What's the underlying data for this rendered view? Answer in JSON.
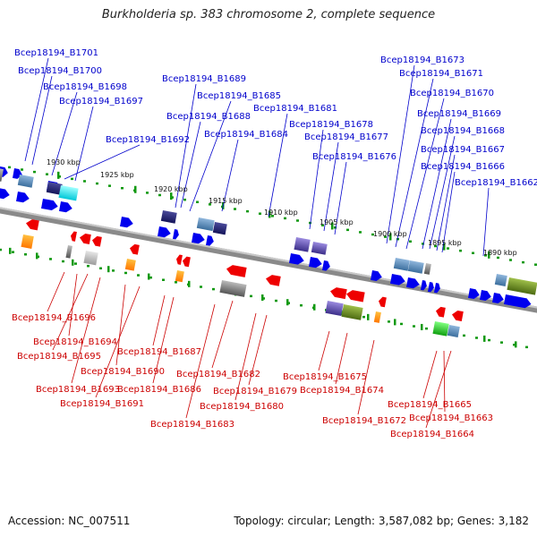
{
  "title": "Burkholderia sp. 383 chromosome 2, complete sequence",
  "footer": {
    "accession": "Accession: NC_007511",
    "summary": "Topology: circular; Length: 3,587,082 bp; Genes: 3,182"
  },
  "colors": {
    "forward_label": "#0000cc",
    "reverse_label": "#cc0000",
    "forward_gene": "#0000ee",
    "reverse_gene": "#ee0000",
    "backbone": "#888888",
    "ruler": "#119911"
  },
  "ruler_ticks": [
    "1930 kbp",
    "1925 kbp",
    "1920 kbp",
    "1915 kbp",
    "1910 kbp",
    "1905 kbp",
    "1900 kbp",
    "1895 kbp",
    "1890 kbp"
  ],
  "forward_labels": [
    "Bcep18194_B1701",
    "Bcep18194_B1700",
    "Bcep18194_B1698",
    "Bcep18194_B1697",
    "Bcep18194_B1689",
    "Bcep18194_B1685",
    "Bcep18194_B1688",
    "Bcep18194_B1692",
    "Bcep18194_B1684",
    "Bcep18194_B1681",
    "Bcep18194_B1678",
    "Bcep18194_B1677",
    "Bcep18194_B1676",
    "Bcep18194_B1673",
    "Bcep18194_B1671",
    "Bcep18194_B1670",
    "Bcep18194_B1669",
    "Bcep18194_B1668",
    "Bcep18194_B1667",
    "Bcep18194_B1666",
    "Bcep18194_B1662"
  ],
  "reverse_labels": [
    "Bcep18194_B1696",
    "Bcep18194_B1694",
    "Bcep18194_B1695",
    "Bcep18194_B1687",
    "Bcep18194_B1690",
    "Bcep18194_B1693",
    "Bcep18194_B1686",
    "Bcep18194_B1691",
    "Bcep18194_B1682",
    "Bcep18194_B1679",
    "Bcep18194_B1680",
    "Bcep18194_B1683",
    "Bcep18194_B1675",
    "Bcep18194_B1674",
    "Bcep18194_B1672",
    "Bcep18194_B1665",
    "Bcep18194_B1663",
    "Bcep18194_B1664"
  ]
}
